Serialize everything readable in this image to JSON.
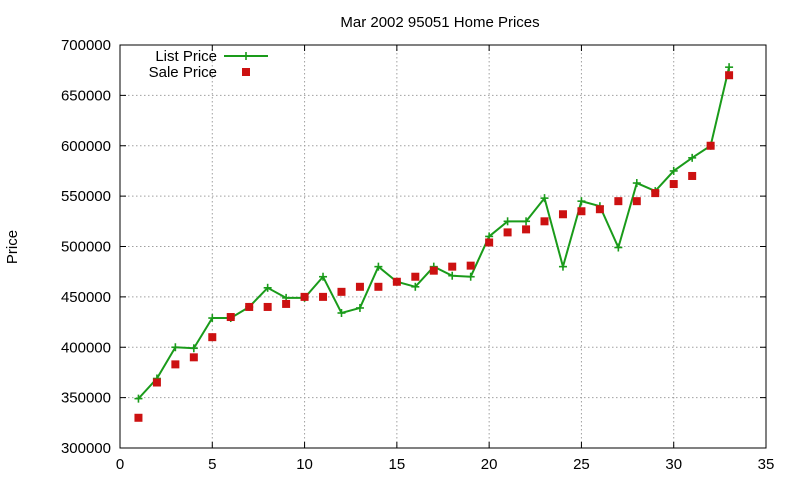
{
  "chart_data": {
    "type": "line",
    "title": "Mar 2002 95051 Home Prices",
    "xlabel": "",
    "ylabel": "Price",
    "xlim": [
      0,
      35
    ],
    "ylim": [
      300000,
      700000
    ],
    "xticks": [
      0,
      5,
      10,
      15,
      20,
      25,
      30,
      35
    ],
    "yticks": [
      300000,
      350000,
      400000,
      450000,
      500000,
      550000,
      600000,
      650000,
      700000
    ],
    "grid": true,
    "legend_position": "top-left",
    "x": [
      1,
      2,
      3,
      4,
      5,
      6,
      7,
      8,
      9,
      10,
      11,
      12,
      13,
      14,
      15,
      16,
      17,
      18,
      19,
      20,
      21,
      22,
      23,
      24,
      25,
      26,
      27,
      28,
      29,
      30,
      31,
      32,
      33
    ],
    "series": [
      {
        "name": "List Price",
        "style": "linespoints",
        "marker": "plus",
        "color": "#1a9b1a",
        "values": [
          349000,
          369000,
          400000,
          399000,
          429000,
          429000,
          440000,
          459000,
          449000,
          449000,
          470000,
          434000,
          439000,
          480000,
          465000,
          460000,
          480000,
          471000,
          470000,
          510000,
          525000,
          525000,
          548000,
          480000,
          545000,
          540000,
          499000,
          563000,
          555000,
          575000,
          588000,
          600000,
          678000
        ]
      },
      {
        "name": "Sale Price",
        "style": "points",
        "marker": "square",
        "color": "#cc1111",
        "values": [
          330000,
          365000,
          383000,
          390000,
          410000,
          430000,
          440000,
          440000,
          443000,
          450000,
          450000,
          455000,
          460000,
          460000,
          465000,
          470000,
          476000,
          480000,
          481000,
          504000,
          514000,
          517000,
          525000,
          532000,
          535000,
          537000,
          545000,
          545000,
          553000,
          562000,
          570000,
          600000,
          670000
        ]
      }
    ]
  }
}
